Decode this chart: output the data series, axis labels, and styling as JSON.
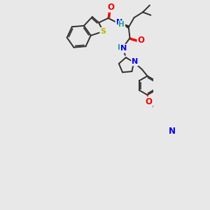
{
  "bg_color": "#e8e8e8",
  "atom_colors": {
    "C": "#303030",
    "N": "#0000ee",
    "O": "#ee0000",
    "S": "#b8b800",
    "H": "#20a0a0"
  },
  "bond_lw": 1.4,
  "font_size": 8.5
}
